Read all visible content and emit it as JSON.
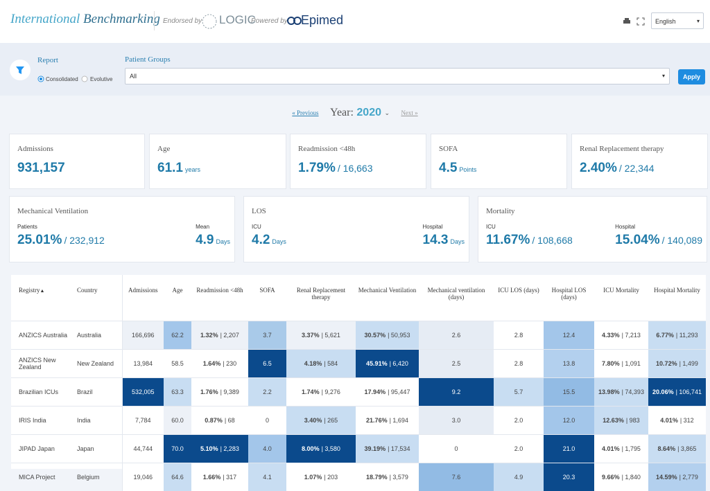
{
  "header": {
    "title_a": "International",
    "title_b": "Benchmarking",
    "endorsed": "Endorsed by",
    "logic": "LOGIC",
    "powered": "Powered by",
    "epimed": "Epimed",
    "language": "English"
  },
  "filter": {
    "report_label": "Report",
    "options": [
      "Consolidated",
      "Evolutive"
    ],
    "groups_label": "Patient Groups",
    "groups_value": "All",
    "apply": "Apply"
  },
  "year_nav": {
    "previous": "« Previous",
    "year_label": "Year:",
    "year": "2020",
    "next": "Next »"
  },
  "cards_top": [
    {
      "label": "Admissions",
      "value": "931,157",
      "extra": ""
    },
    {
      "label": "Age",
      "value": "61.1",
      "extra": "years"
    },
    {
      "label": "Readmission <48h",
      "value": "1.79%",
      "extra": "/ 16,663"
    },
    {
      "label": "SOFA",
      "value": "4.5",
      "extra": "Points"
    },
    {
      "label": "Renal Replacement therapy",
      "value": "2.40%",
      "extra": "/ 22,344"
    }
  ],
  "cards_bottom": [
    {
      "label": "Mechanical Ventilation",
      "items": [
        {
          "label": "Patients",
          "value": "25.01%",
          "extra": "/ 232,912"
        },
        {
          "label": "Mean",
          "value": "4.9",
          "extra": "Days"
        }
      ]
    },
    {
      "label": "LOS",
      "items": [
        {
          "label": "ICU",
          "value": "4.2",
          "extra": "Days"
        },
        {
          "label": "Hospital",
          "value": "14.3",
          "extra": "Days"
        }
      ]
    },
    {
      "label": "Mortality",
      "items": [
        {
          "label": "ICU",
          "value": "11.67%",
          "extra": "/ 108,668"
        },
        {
          "label": "Hospital",
          "value": "15.04%",
          "extra": "/ 140,089"
        }
      ]
    }
  ],
  "table": {
    "headers": [
      "Registry",
      "Country",
      "Admissions",
      "Age",
      "Readmission <48h",
      "SOFA",
      "Renal Replacement therapy",
      "Mechanical Ventilation",
      "Mechanical ventilation (days)",
      "ICU LOS (days)",
      "Hospital LOS (days)",
      "ICU Mortality",
      "Hospital Mortality"
    ],
    "rows": [
      {
        "registry": "ANZICS Australia",
        "country": "Australia",
        "cells": [
          {
            "main": "166,696",
            "bg": "#edf1f7"
          },
          {
            "main": "62.2",
            "bg": "#a3c6ea"
          },
          {
            "main": "1.32%",
            "sub": "| 2,207",
            "bg": "#edf1f7"
          },
          {
            "main": "3.7",
            "bg": "#a9cae9"
          },
          {
            "main": "3.37%",
            "sub": "| 5,621",
            "bg": "#edf1f7"
          },
          {
            "main": "30.57%",
            "sub": "| 50,953",
            "bg": "#c8ddf2"
          },
          {
            "main": "2.6",
            "bg": "#e6ecf4"
          },
          {
            "main": "2.8",
            "bg": "#ffffff"
          },
          {
            "main": "12.4",
            "bg": "#a3c6ea"
          },
          {
            "main": "4.33%",
            "sub": "| 7,213",
            "bg": "#ffffff"
          },
          {
            "main": "6.77%",
            "sub": "| 11,293",
            "bg": "#c8ddf2"
          }
        ]
      },
      {
        "registry": "ANZICS New Zealand",
        "country": "New Zealand",
        "cells": [
          {
            "main": "13,984",
            "bg": "#ffffff"
          },
          {
            "main": "58.5",
            "bg": "#ffffff"
          },
          {
            "main": "1.64%",
            "sub": "| 230",
            "bg": "#ffffff"
          },
          {
            "main": "6.5",
            "bg": "#0b4a8c"
          },
          {
            "main": "4.18%",
            "sub": "| 584",
            "bg": "#c8ddf2"
          },
          {
            "main": "45.91%",
            "sub": "| 6,420",
            "bg": "#0b4a8c"
          },
          {
            "main": "2.5",
            "bg": "#e6ecf4"
          },
          {
            "main": "2.8",
            "bg": "#ffffff"
          },
          {
            "main": "13.8",
            "bg": "#b3d0ee"
          },
          {
            "main": "7.80%",
            "sub": "| 1,091",
            "bg": "#ffffff"
          },
          {
            "main": "10.72%",
            "sub": "| 1,499",
            "bg": "#c8ddf2"
          }
        ]
      },
      {
        "registry": "Brazilian ICUs",
        "country": "Brazil",
        "cells": [
          {
            "main": "532,005",
            "bg": "#0b4a8c"
          },
          {
            "main": "63.3",
            "bg": "#c8ddf2"
          },
          {
            "main": "1.76%",
            "sub": "| 9,389",
            "bg": "#ffffff"
          },
          {
            "main": "2.2",
            "bg": "#c8ddf2"
          },
          {
            "main": "1.74%",
            "sub": "| 9,276",
            "bg": "#ffffff"
          },
          {
            "main": "17.94%",
            "sub": "| 95,447",
            "bg": "#ffffff"
          },
          {
            "main": "9.2",
            "bg": "#0b4a8c"
          },
          {
            "main": "5.7",
            "bg": "#c8ddf2"
          },
          {
            "main": "15.5",
            "bg": "#92bbe4"
          },
          {
            "main": "13.98%",
            "sub": "| 74,393",
            "bg": "#c8ddf2"
          },
          {
            "main": "20.06%",
            "sub": "| 106,741",
            "bg": "#0b4a8c"
          }
        ]
      },
      {
        "registry": "IRIS India",
        "country": "India",
        "cells": [
          {
            "main": "7,784",
            "bg": "#ffffff"
          },
          {
            "main": "60.0",
            "bg": "#edf1f7"
          },
          {
            "main": "0.87%",
            "sub": "| 68",
            "bg": "#ffffff"
          },
          {
            "main": "0",
            "bg": "#ffffff"
          },
          {
            "main": "3.40%",
            "sub": "| 265",
            "bg": "#c8ddf2"
          },
          {
            "main": "21.76%",
            "sub": "| 1,694",
            "bg": "#ffffff"
          },
          {
            "main": "3.0",
            "bg": "#e6ecf4"
          },
          {
            "main": "2.0",
            "bg": "#ffffff"
          },
          {
            "main": "12.0",
            "bg": "#a3c6ea"
          },
          {
            "main": "12.63%",
            "sub": "| 983",
            "bg": "#c8ddf2"
          },
          {
            "main": "4.01%",
            "sub": "| 312",
            "bg": "#ffffff"
          }
        ]
      },
      {
        "registry": "JIPAD Japan",
        "country": "Japan",
        "cells": [
          {
            "main": "44,744",
            "bg": "#ffffff"
          },
          {
            "main": "70.0",
            "bg": "#0b4a8c"
          },
          {
            "main": "5.10%",
            "sub": "| 2,283",
            "bg": "#0b4a8c"
          },
          {
            "main": "4.0",
            "bg": "#a3c6ea"
          },
          {
            "main": "8.00%",
            "sub": "| 3,580",
            "bg": "#0b4a8c"
          },
          {
            "main": "39.19%",
            "sub": "| 17,534",
            "bg": "#c8ddf2"
          },
          {
            "main": "0",
            "bg": "#ffffff"
          },
          {
            "main": "2.0",
            "bg": "#ffffff"
          },
          {
            "main": "21.0",
            "bg": "#0b4a8c"
          },
          {
            "main": "4.01%",
            "sub": "| 1,795",
            "bg": "#ffffff"
          },
          {
            "main": "8.64%",
            "sub": "| 3,865",
            "bg": "#c8ddf2"
          }
        ]
      },
      {
        "registry": "MICA Project",
        "country": "Belgium",
        "cells": [
          {
            "main": "19,046",
            "bg": "#ffffff"
          },
          {
            "main": "64.6",
            "bg": "#c8ddf2"
          },
          {
            "main": "1.66%",
            "sub": "| 317",
            "bg": "#ffffff"
          },
          {
            "main": "4.1",
            "bg": "#c8ddf2"
          },
          {
            "main": "1.07%",
            "sub": "| 203",
            "bg": "#ffffff"
          },
          {
            "main": "18.79%",
            "sub": "| 3,579",
            "bg": "#ffffff"
          },
          {
            "main": "7.6",
            "bg": "#92bbe4"
          },
          {
            "main": "4.9",
            "bg": "#c8ddf2"
          },
          {
            "main": "20.3",
            "bg": "#0b4a8c"
          },
          {
            "main": "9.66%",
            "sub": "| 1,840",
            "bg": "#ffffff"
          },
          {
            "main": "14.59%",
            "sub": "| 2,779",
            "bg": "#b3d0ee"
          }
        ]
      }
    ]
  }
}
